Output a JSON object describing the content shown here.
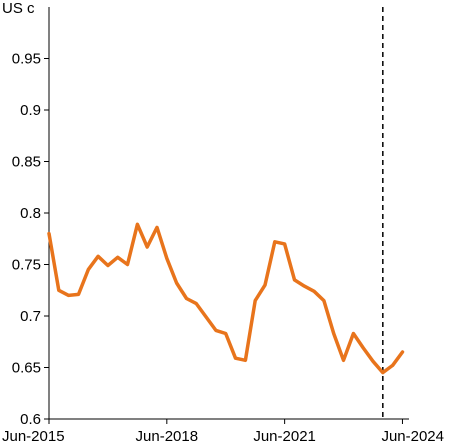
{
  "chart_data": {
    "type": "line",
    "title": "",
    "unit_label": "US c",
    "xlabel": "",
    "ylabel": "",
    "x_tick_labels": [
      "Jun-2015",
      "Jun-2018",
      "Jun-2021",
      "Jun-2024"
    ],
    "x_tick_dates": [
      "2015-06",
      "2018-06",
      "2021-06",
      "2024-06"
    ],
    "ylim": [
      0.6,
      1.0
    ],
    "y_ticks": [
      0.6,
      0.65,
      0.7,
      0.75,
      0.8,
      0.85,
      0.9,
      0.95
    ],
    "y_tick_labels": [
      "0.6",
      "0.65",
      "0.7",
      "0.75",
      "0.8",
      "0.85",
      "0.9",
      "0.95"
    ],
    "grid": false,
    "series": [
      {
        "color": "#E8741C",
        "points": [
          {
            "x": "2015-06",
            "y": 0.78
          },
          {
            "x": "2015-09",
            "y": 0.725
          },
          {
            "x": "2015-12",
            "y": 0.72
          },
          {
            "x": "2016-03",
            "y": 0.721
          },
          {
            "x": "2016-06",
            "y": 0.745
          },
          {
            "x": "2016-09",
            "y": 0.758
          },
          {
            "x": "2016-12",
            "y": 0.749
          },
          {
            "x": "2017-03",
            "y": 0.757
          },
          {
            "x": "2017-06",
            "y": 0.75
          },
          {
            "x": "2017-09",
            "y": 0.789
          },
          {
            "x": "2017-12",
            "y": 0.767
          },
          {
            "x": "2018-03",
            "y": 0.786
          },
          {
            "x": "2018-06",
            "y": 0.756
          },
          {
            "x": "2018-09",
            "y": 0.732
          },
          {
            "x": "2018-12",
            "y": 0.717
          },
          {
            "x": "2019-03",
            "y": 0.712
          },
          {
            "x": "2019-06",
            "y": 0.699
          },
          {
            "x": "2019-09",
            "y": 0.686
          },
          {
            "x": "2019-12",
            "y": 0.683
          },
          {
            "x": "2020-03",
            "y": 0.659
          },
          {
            "x": "2020-06",
            "y": 0.657
          },
          {
            "x": "2020-09",
            "y": 0.715
          },
          {
            "x": "2020-12",
            "y": 0.73
          },
          {
            "x": "2021-03",
            "y": 0.772
          },
          {
            "x": "2021-06",
            "y": 0.77
          },
          {
            "x": "2021-09",
            "y": 0.735
          },
          {
            "x": "2021-12",
            "y": 0.729
          },
          {
            "x": "2022-03",
            "y": 0.724
          },
          {
            "x": "2022-06",
            "y": 0.715
          },
          {
            "x": "2022-09",
            "y": 0.683
          },
          {
            "x": "2022-12",
            "y": 0.657
          },
          {
            "x": "2023-03",
            "y": 0.683
          },
          {
            "x": "2023-06",
            "y": 0.669
          },
          {
            "x": "2023-09",
            "y": 0.656
          },
          {
            "x": "2023-12",
            "y": 0.645
          },
          {
            "x": "2024-03",
            "y": 0.652
          },
          {
            "x": "2024-06",
            "y": 0.665
          }
        ]
      }
    ],
    "reference_line": {
      "x": "2023-12",
      "style": "dashed",
      "color": "#000000"
    }
  }
}
